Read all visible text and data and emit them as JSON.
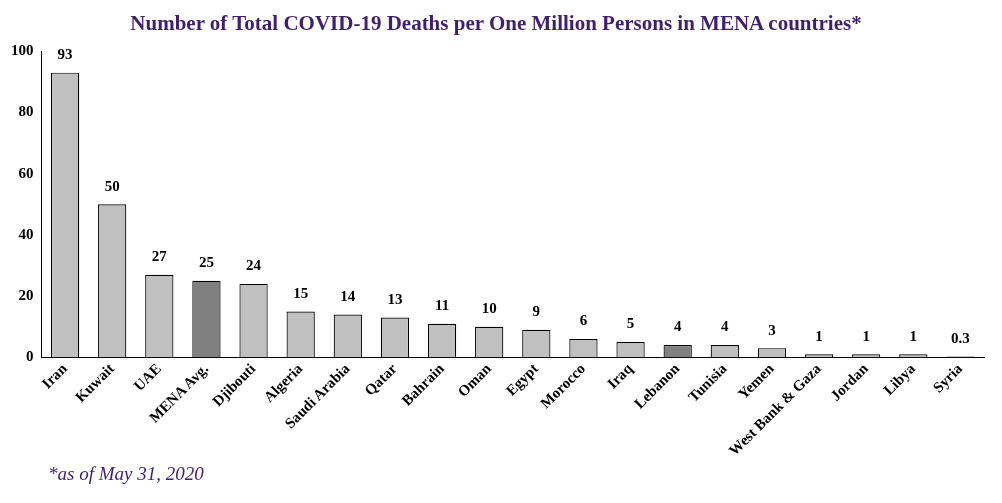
{
  "chart_data": {
    "type": "bar",
    "title": "Number of Total COVID-19 Deaths per One Million Persons in MENA countries*",
    "categories": [
      "Iran",
      "Kuwait",
      "UAE",
      "MENA Avg.",
      "Djibouti",
      "Algeria",
      "Saudi Arabia",
      "Qatar",
      "Bahrain",
      "Oman",
      "Egypt",
      "Morocco",
      "Iraq",
      "Lebanon",
      "Tunisia",
      "Yemen",
      "West Bank & Gaza",
      "Jordan",
      "Libya",
      "Syria"
    ],
    "values": [
      93,
      50,
      27,
      25,
      24,
      15,
      14,
      13,
      11,
      10,
      9,
      6,
      5,
      4,
      4,
      3,
      1,
      1,
      1,
      0.3
    ],
    "colors": [
      "#c0c0c0",
      "#c0c0c0",
      "#c0c0c0",
      "#808080",
      "#c0c0c0",
      "#c0c0c0",
      "#c0c0c0",
      "#c0c0c0",
      "#c0c0c0",
      "#c0c0c0",
      "#c0c0c0",
      "#c0c0c0",
      "#c0c0c0",
      "#808080",
      "#c0c0c0",
      "#c0c0c0",
      "#c0c0c0",
      "#c0c0c0",
      "#c0c0c0",
      "#c0c0c0"
    ],
    "ylim": [
      0,
      100
    ],
    "yticks": [
      0,
      20,
      40,
      60,
      80,
      100
    ],
    "grid": false,
    "data_labels": true,
    "annotations": [
      "*as of May 31, 2020"
    ]
  }
}
